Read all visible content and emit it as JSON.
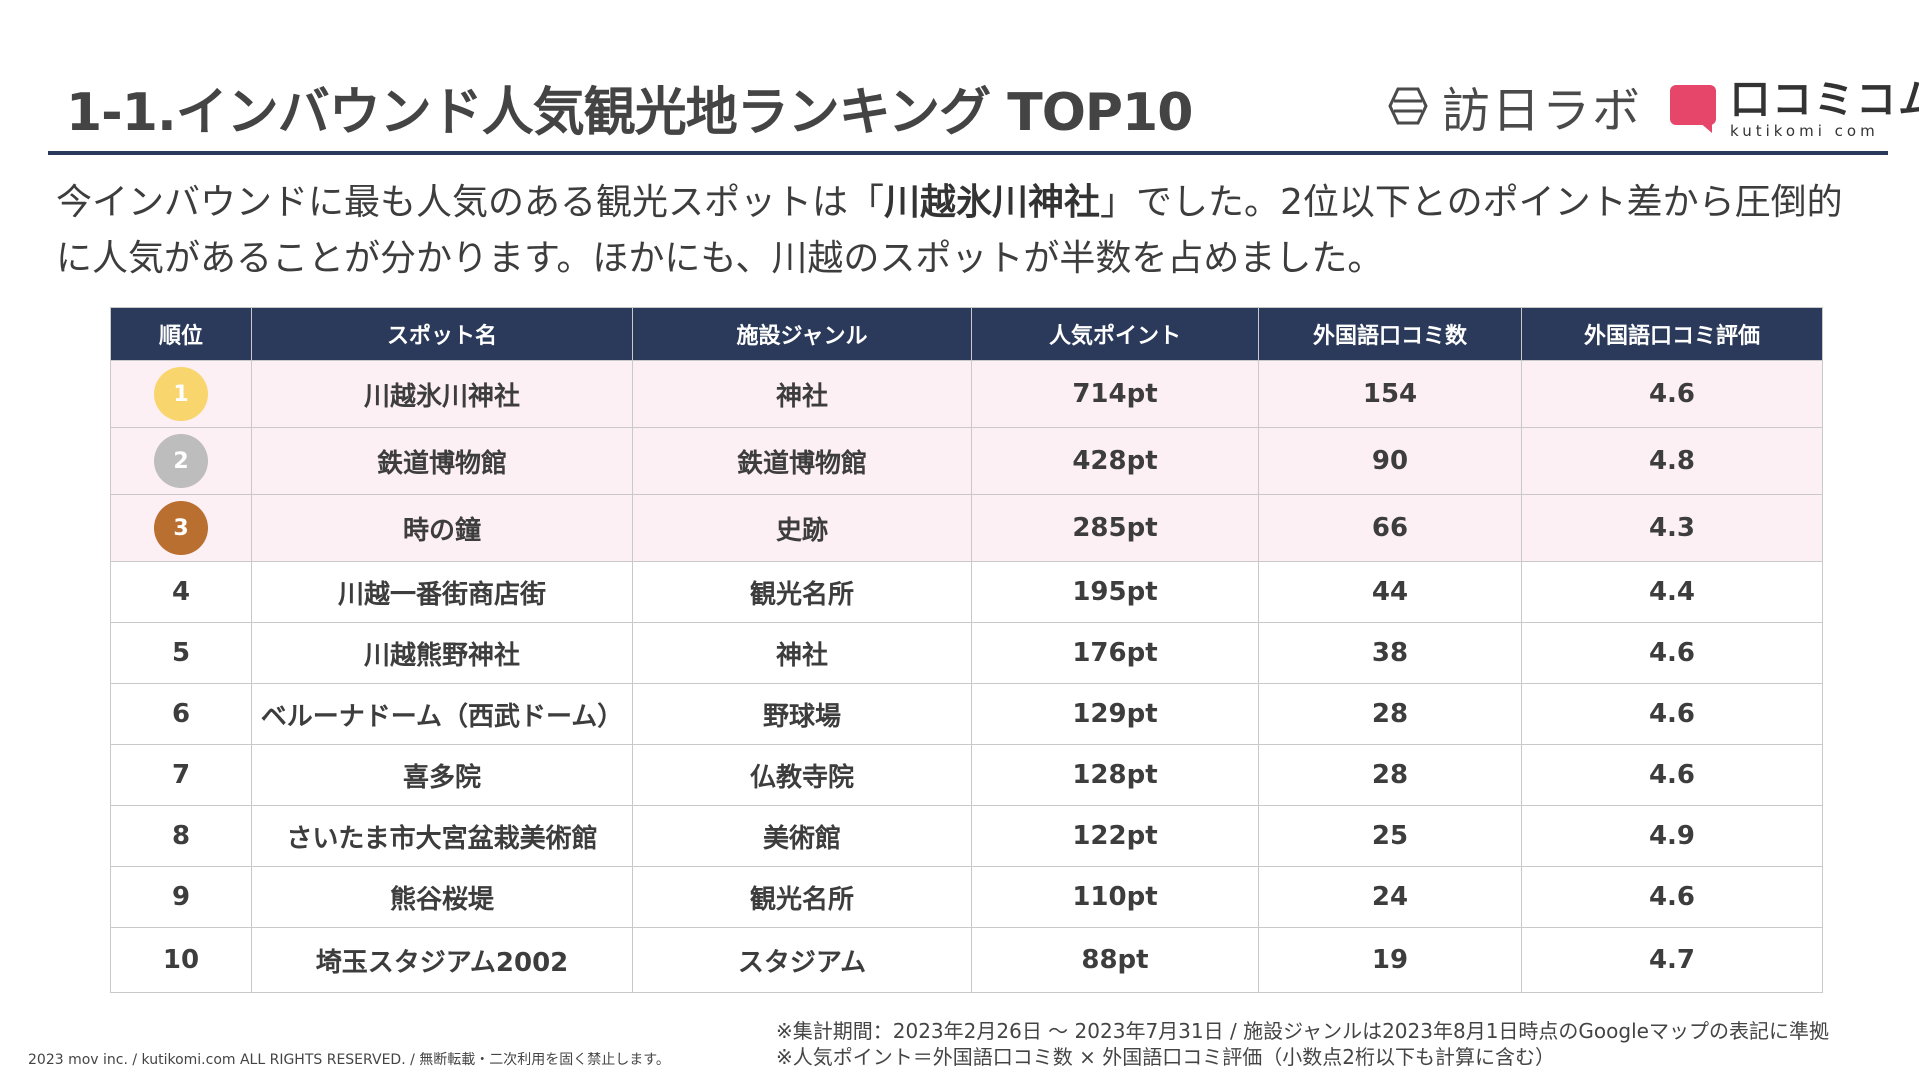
{
  "title": "1-1.インバウンド人気観光地ランキング TOP10",
  "logos": {
    "houjin_labo": "訪日ラボ",
    "kutikomi_main": "口コミコム",
    "kutikomi_sub": "kutikomi com",
    "kutikomi_color": "#e5466a"
  },
  "intro": {
    "before": "今インバウンドに最も人気のある観光スポットは「",
    "highlight": "川越氷川神社",
    "after": "」でした。2位以下とのポイント差から圧倒的に人気があることが分かります。ほかにも、川越のスポットが半数を占めました。"
  },
  "table": {
    "headers": [
      "順位",
      "スポット名",
      "施設ジャンル",
      "人気ポイント",
      "外国語口コミ数",
      "外国語口コミ評価"
    ],
    "rows": [
      {
        "rank": "1",
        "spot": "川越氷川神社",
        "genre": "神社",
        "points": "714pt",
        "reviews": "154",
        "rating": "4.6",
        "medal_color": "#f9d56e"
      },
      {
        "rank": "2",
        "spot": "鉄道博物館",
        "genre": "鉄道博物館",
        "points": "428pt",
        "reviews": "90",
        "rating": "4.8",
        "medal_color": "#bdbdbd"
      },
      {
        "rank": "3",
        "spot": "時の鐘",
        "genre": "史跡",
        "points": "285pt",
        "reviews": "66",
        "rating": "4.3",
        "medal_color": "#b96f30"
      },
      {
        "rank": "4",
        "spot": "川越一番街商店街",
        "genre": "観光名所",
        "points": "195pt",
        "reviews": "44",
        "rating": "4.4"
      },
      {
        "rank": "5",
        "spot": "川越熊野神社",
        "genre": "神社",
        "points": "176pt",
        "reviews": "38",
        "rating": "4.6"
      },
      {
        "rank": "6",
        "spot": "ベルーナドーム（西武ドーム）",
        "genre": "野球場",
        "points": "129pt",
        "reviews": "28",
        "rating": "4.6"
      },
      {
        "rank": "7",
        "spot": "喜多院",
        "genre": "仏教寺院",
        "points": "128pt",
        "reviews": "28",
        "rating": "4.6"
      },
      {
        "rank": "8",
        "spot": "さいたま市大宮盆栽美術館",
        "genre": "美術館",
        "points": "122pt",
        "reviews": "25",
        "rating": "4.9"
      },
      {
        "rank": "9",
        "spot": "熊谷桜堤",
        "genre": "観光名所",
        "points": "110pt",
        "reviews": "24",
        "rating": "4.6"
      },
      {
        "rank": "10",
        "spot": "埼玉スタジアム2002",
        "genre": "スタジアム",
        "points": "88pt",
        "reviews": "19",
        "rating": "4.7"
      }
    ]
  },
  "notes": [
    "※集計期間：2023年2月26日 〜 2023年7月31日 / 施設ジャンルは2023年8月1日時点のGoogleマップの表記に準拠",
    "※人気ポイント＝外国語口コミ数 × 外国語口コミ評価（小数点2桁以下も計算に含む）"
  ],
  "copyright": "2023 mov inc. / kutikomi.com ALL RIGHTS RESERVED. / 無断転載・二次利用を固く禁止します。",
  "colors": {
    "header_navy": "#2b3a5a",
    "top3_row_bg": "#fdf0f5"
  }
}
